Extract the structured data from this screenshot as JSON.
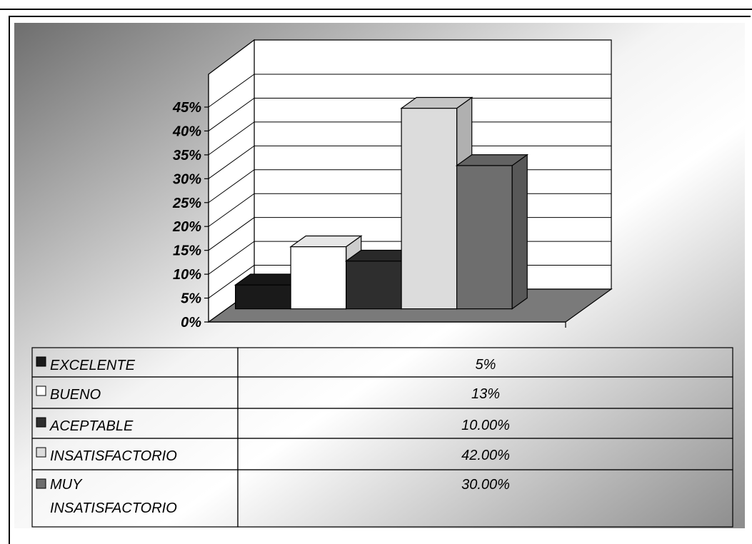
{
  "chart_data": {
    "type": "bar",
    "categories": [
      "EXCELENTE",
      "BUENO",
      "ACEPTABLE",
      "INSATISFACTORIO",
      "MUY INSATISFACTORIO"
    ],
    "values": [
      5,
      13,
      10,
      42,
      30
    ],
    "value_labels": [
      "5%",
      "13%",
      "10.00%",
      "42.00%",
      "30.00%"
    ],
    "y_ticks": [
      "0%",
      "5%",
      "10%",
      "15%",
      "20%",
      "25%",
      "30%",
      "35%",
      "40%",
      "45%"
    ],
    "ylim": [
      0,
      45
    ],
    "grid": true,
    "legend": "data-table-below",
    "colors": {
      "EXCELENTE": "#1a1a1a",
      "BUENO": "#ffffff",
      "ACEPTABLE": "#2e2e2e",
      "INSATISFACTORIO": "#dcdcdc",
      "MUY INSATISFACTORIO": "#6e6e6e",
      "floor": "#7a7a7a"
    }
  }
}
